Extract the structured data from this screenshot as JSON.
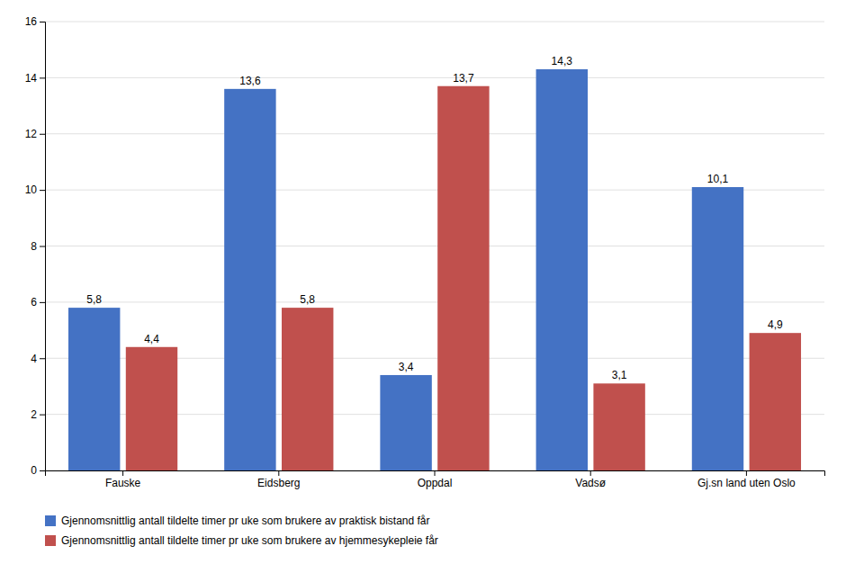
{
  "chart_data": {
    "type": "bar",
    "categories": [
      "Fauske",
      "Eidsberg",
      "Oppdal",
      "Vadsø",
      "Gj.sn land uten Oslo"
    ],
    "series": [
      {
        "name": "Gjennomsnittlig antall tildelte timer pr uke som brukere av praktisk bistand får",
        "color": "#4472C4",
        "values": [
          5.8,
          13.6,
          3.4,
          14.3,
          10.1
        ],
        "value_labels": [
          "5,8",
          "13,6",
          "3,4",
          "14,3",
          "10,1"
        ]
      },
      {
        "name": "Gjennomsnittlig antall tildelte timer pr uke som brukere av hjemmesykepleie får",
        "color": "#C0504D",
        "values": [
          4.4,
          5.8,
          13.7,
          3.1,
          4.9
        ],
        "value_labels": [
          "4,4",
          "5,8",
          "13,7",
          "3,1",
          "4,9"
        ]
      }
    ],
    "ylim": [
      0,
      16
    ],
    "yticks": [
      0,
      2,
      4,
      6,
      8,
      10,
      12,
      14,
      16
    ],
    "grid": true,
    "legend": "bottom-left",
    "data_labels": true
  }
}
